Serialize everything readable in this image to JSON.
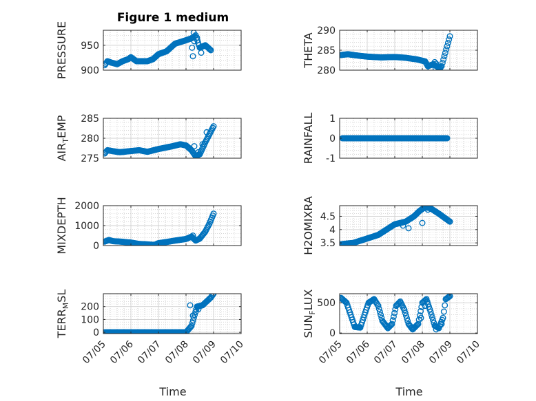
{
  "figure_title": "Figure 1 medium",
  "x_axis": {
    "label": "Time",
    "tick_labels": [
      "07/05",
      "07/06",
      "07/07",
      "07/08",
      "07/09",
      "07/10"
    ],
    "range_days": [
      0,
      5
    ]
  },
  "colors": {
    "marker": "#0072bd",
    "axes": "#262626",
    "grid": "#b0b0b0"
  },
  "chart_data": [
    {
      "type": "scatter",
      "ylabel": "PRESSURE",
      "ylim": [
        900,
        980
      ],
      "yticks": [
        900,
        950
      ],
      "grid": true,
      "anchors": [
        [
          0.05,
          910
        ],
        [
          0.15,
          918
        ],
        [
          0.3,
          915
        ],
        [
          0.5,
          912
        ],
        [
          0.7,
          918
        ],
        [
          0.9,
          922
        ],
        [
          1.0,
          926
        ],
        [
          1.2,
          918
        ],
        [
          1.6,
          918
        ],
        [
          1.8,
          922
        ],
        [
          2.0,
          932
        ],
        [
          2.3,
          938
        ],
        [
          2.6,
          953
        ],
        [
          3.0,
          960
        ],
        [
          3.25,
          965
        ],
        [
          3.35,
          970
        ],
        [
          3.5,
          945
        ],
        [
          3.7,
          950
        ],
        [
          3.9,
          940
        ]
      ],
      "extra": [
        [
          3.28,
          975
        ],
        [
          3.3,
          958
        ],
        [
          3.25,
          928
        ],
        [
          3.22,
          945
        ],
        [
          3.4,
          965
        ],
        [
          3.55,
          935
        ]
      ]
    },
    {
      "type": "scatter",
      "ylabel": "THETA",
      "ylim": [
        280,
        290
      ],
      "yticks": [
        280,
        285,
        290
      ],
      "grid": true,
      "anchors": [
        [
          0.05,
          283.8
        ],
        [
          0.3,
          284
        ],
        [
          0.6,
          283.7
        ],
        [
          1.0,
          283.4
        ],
        [
          1.5,
          283.2
        ],
        [
          2.0,
          283.3
        ],
        [
          2.4,
          283.1
        ],
        [
          2.8,
          282.7
        ],
        [
          3.1,
          282.2
        ],
        [
          3.2,
          281
        ],
        [
          3.4,
          281.5
        ],
        [
          3.6,
          280.6
        ],
        [
          3.7,
          281
        ],
        [
          3.8,
          283.5
        ],
        [
          3.9,
          286
        ],
        [
          4.0,
          288.5
        ]
      ],
      "extra": [
        [
          3.3,
          280.3
        ],
        [
          3.45,
          282
        ],
        [
          3.5,
          281.6
        ],
        [
          3.65,
          280.5
        ]
      ]
    },
    {
      "type": "scatter",
      "ylabel": "AIR_TEMP",
      "ylim": [
        275,
        285
      ],
      "yticks": [
        275,
        280,
        285
      ],
      "grid": true,
      "anchors": [
        [
          0.05,
          276.2
        ],
        [
          0.15,
          277
        ],
        [
          0.4,
          276.7
        ],
        [
          0.6,
          276.5
        ],
        [
          1.0,
          276.8
        ],
        [
          1.3,
          277
        ],
        [
          1.6,
          276.6
        ],
        [
          2.0,
          277.3
        ],
        [
          2.5,
          278
        ],
        [
          2.8,
          278.5
        ],
        [
          3.0,
          278.2
        ],
        [
          3.2,
          277
        ],
        [
          3.35,
          275.5
        ],
        [
          3.5,
          276
        ],
        [
          3.7,
          279
        ],
        [
          3.85,
          281
        ],
        [
          4.0,
          283
        ]
      ],
      "extra": [
        [
          3.3,
          278
        ],
        [
          3.45,
          276.5
        ],
        [
          3.6,
          278.5
        ],
        [
          3.75,
          281.5
        ]
      ]
    },
    {
      "type": "scatter",
      "ylabel": "RAINFALL",
      "ylim": [
        -1,
        1
      ],
      "yticks": [
        -1,
        0,
        1
      ],
      "grid": true,
      "anchors": [
        [
          0.1,
          0
        ],
        [
          3.9,
          0
        ]
      ],
      "extra": []
    },
    {
      "type": "scatter",
      "ylabel": "MIXDEPTH",
      "ylim": [
        0,
        2000
      ],
      "yticks": [
        0,
        1000,
        2000
      ],
      "grid": true,
      "anchors": [
        [
          0.05,
          200
        ],
        [
          0.2,
          280
        ],
        [
          0.35,
          220
        ],
        [
          0.6,
          200
        ],
        [
          1.0,
          150
        ],
        [
          1.3,
          80
        ],
        [
          1.6,
          60
        ],
        [
          1.85,
          30
        ],
        [
          2.0,
          120
        ],
        [
          2.3,
          180
        ],
        [
          2.6,
          250
        ],
        [
          3.0,
          330
        ],
        [
          3.2,
          450
        ],
        [
          3.35,
          250
        ],
        [
          3.5,
          350
        ],
        [
          3.7,
          700
        ],
        [
          3.85,
          1100
        ],
        [
          4.0,
          1600
        ]
      ],
      "extra": [
        [
          3.25,
          500
        ],
        [
          3.3,
          320
        ]
      ]
    },
    {
      "type": "scatter",
      "ylabel": "H2OMIXRA",
      "ylim": [
        3.4,
        4.9
      ],
      "yticks": [
        3.5,
        4.0,
        4.5
      ],
      "grid": true,
      "anchors": [
        [
          0.05,
          3.45
        ],
        [
          0.5,
          3.5
        ],
        [
          0.8,
          3.6
        ],
        [
          1.1,
          3.7
        ],
        [
          1.4,
          3.8
        ],
        [
          1.7,
          4.0
        ],
        [
          2.0,
          4.2
        ],
        [
          2.4,
          4.3
        ],
        [
          2.7,
          4.5
        ],
        [
          2.9,
          4.7
        ],
        [
          3.1,
          4.85
        ],
        [
          3.3,
          4.8
        ],
        [
          3.6,
          4.6
        ],
        [
          3.8,
          4.45
        ],
        [
          4.0,
          4.3
        ]
      ],
      "extra": [
        [
          2.3,
          4.15
        ],
        [
          2.5,
          4.05
        ],
        [
          3.0,
          4.25
        ],
        [
          3.2,
          4.75
        ]
      ]
    },
    {
      "type": "scatter",
      "ylabel": "TERR_MSL",
      "ylim": [
        -10,
        300
      ],
      "yticks": [
        0,
        100,
        200
      ],
      "grid": true,
      "anchors": [
        [
          0.05,
          0
        ],
        [
          3.0,
          0
        ],
        [
          3.2,
          50
        ],
        [
          3.4,
          200
        ],
        [
          3.6,
          210
        ],
        [
          3.75,
          240
        ],
        [
          3.9,
          270
        ],
        [
          4.0,
          300
        ]
      ],
      "extra": [
        [
          3.15,
          210
        ],
        [
          3.25,
          130
        ],
        [
          3.35,
          160
        ],
        [
          3.45,
          180
        ]
      ]
    },
    {
      "type": "scatter",
      "ylabel": "SUN_FLUX",
      "ylim": [
        -10,
        650
      ],
      "yticks": [
        0,
        500
      ],
      "grid": true,
      "anchors": [
        [
          0.05,
          580
        ],
        [
          0.25,
          500
        ],
        [
          0.4,
          300
        ],
        [
          0.55,
          100
        ],
        [
          0.75,
          90
        ],
        [
          0.9,
          300
        ],
        [
          1.05,
          500
        ],
        [
          1.25,
          560
        ],
        [
          1.4,
          450
        ],
        [
          1.55,
          200
        ],
        [
          1.75,
          80
        ],
        [
          1.9,
          150
        ],
        [
          2.05,
          450
        ],
        [
          2.2,
          520
        ],
        [
          2.35,
          380
        ],
        [
          2.5,
          150
        ],
        [
          2.65,
          60
        ],
        [
          2.85,
          150
        ],
        [
          3.0,
          500
        ],
        [
          3.15,
          560
        ],
        [
          3.3,
          350
        ],
        [
          3.45,
          120
        ],
        [
          3.6,
          80
        ],
        [
          3.75,
          250
        ],
        [
          3.85,
          560
        ],
        [
          4.0,
          610
        ]
      ],
      "extra": [
        [
          2.95,
          250
        ],
        [
          3.1,
          450
        ],
        [
          3.5,
          60
        ],
        [
          3.7,
          150
        ]
      ]
    }
  ]
}
